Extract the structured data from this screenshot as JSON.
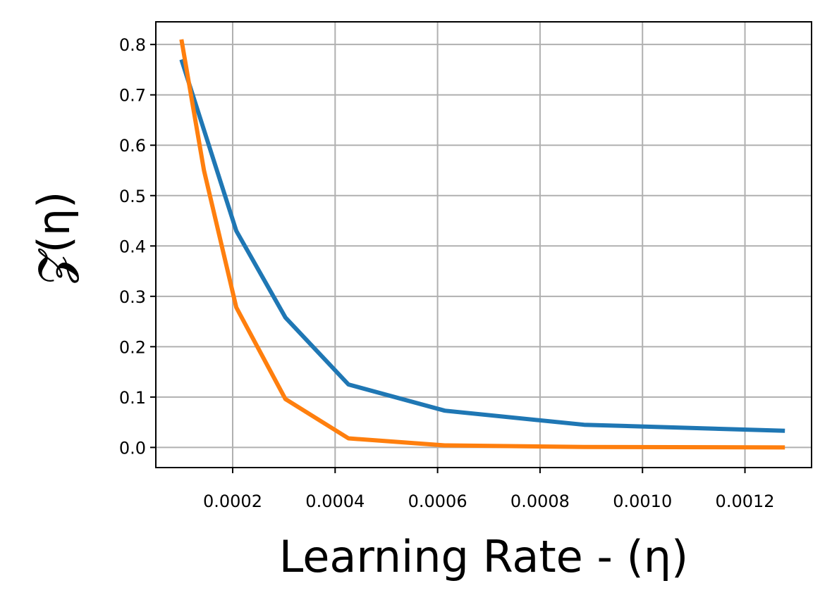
{
  "chart_data": {
    "type": "line",
    "title": "",
    "xlabel": "Learning Rate - (η)",
    "ylabel": "𝓩(η)",
    "xlim": [
      5e-05,
      0.00133
    ],
    "ylim": [
      -0.04,
      0.845
    ],
    "x_ticks": [
      {
        "value": 0.0002,
        "label": "0.0002"
      },
      {
        "value": 0.0004,
        "label": "0.0004"
      },
      {
        "value": 0.0006,
        "label": "0.0006"
      },
      {
        "value": 0.0008,
        "label": "0.0008"
      },
      {
        "value": 0.001,
        "label": "0.0010"
      },
      {
        "value": 0.0012,
        "label": "0.0012"
      }
    ],
    "y_ticks": [
      {
        "value": 0.0,
        "label": "0.0"
      },
      {
        "value": 0.1,
        "label": "0.1"
      },
      {
        "value": 0.2,
        "label": "0.2"
      },
      {
        "value": 0.3,
        "label": "0.3"
      },
      {
        "value": 0.4,
        "label": "0.4"
      },
      {
        "value": 0.5,
        "label": "0.5"
      },
      {
        "value": 0.6,
        "label": "0.6"
      },
      {
        "value": 0.7,
        "label": "0.7"
      },
      {
        "value": 0.8,
        "label": "0.8"
      }
    ],
    "grid": true,
    "legend": "none",
    "series": [
      {
        "color": "#1f77b4",
        "x": [
          0.0001,
          0.000207,
          0.000303,
          0.000426,
          0.000614,
          0.000886,
          0.001278
        ],
        "y": [
          0.77,
          0.43,
          0.258,
          0.125,
          0.073,
          0.045,
          0.033
        ]
      },
      {
        "color": "#ff7f0e",
        "x": [
          0.0001,
          0.000144,
          0.000207,
          0.000303,
          0.000426,
          0.000614,
          0.000886,
          0.001278
        ],
        "y": [
          0.81,
          0.55,
          0.278,
          0.096,
          0.018,
          0.004,
          0.001,
          0.0
        ]
      }
    ]
  }
}
